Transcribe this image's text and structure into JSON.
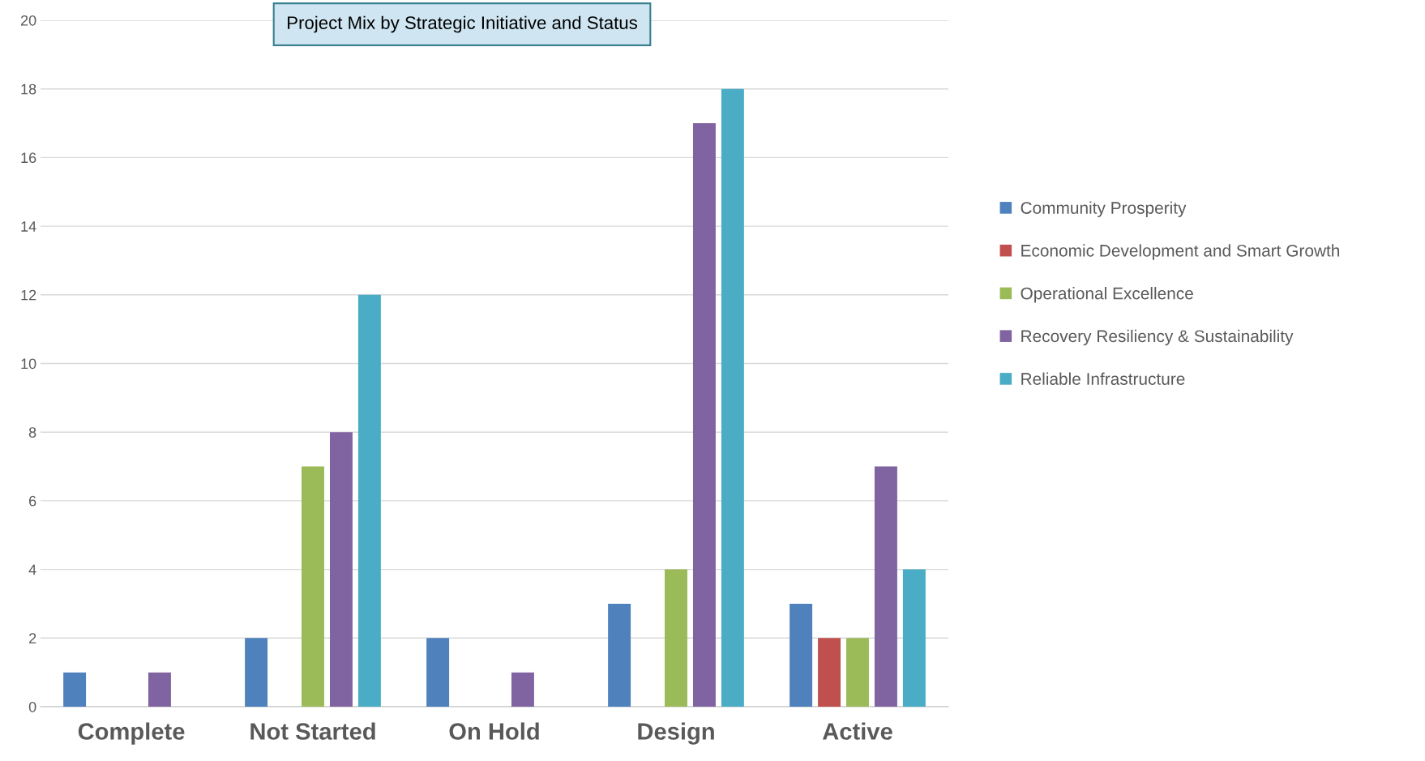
{
  "chart_data": {
    "type": "bar",
    "title": "Project Mix by Strategic Initiative and Status",
    "categories": [
      "Complete",
      "Not Started",
      "On Hold",
      "Design",
      "Active"
    ],
    "series": [
      {
        "name": "Community Prosperity",
        "color": "#4f81bd",
        "values": [
          1,
          2,
          2,
          3,
          3
        ]
      },
      {
        "name": "Economic Development and Smart Growth",
        "color": "#c0504d",
        "values": [
          0,
          0,
          0,
          0,
          2
        ]
      },
      {
        "name": "Operational Excellence",
        "color": "#9bbb59",
        "values": [
          0,
          7,
          0,
          4,
          2
        ]
      },
      {
        "name": "Recovery Resiliency & Sustainability",
        "color": "#8064a2",
        "values": [
          1,
          8,
          1,
          17,
          7
        ]
      },
      {
        "name": "Reliable Infrastructure",
        "color": "#4bacc6",
        "values": [
          0,
          12,
          0,
          18,
          4
        ]
      }
    ],
    "ylim": [
      0,
      20
    ],
    "yticks": [
      0,
      2,
      4,
      6,
      8,
      10,
      12,
      14,
      16,
      18,
      20
    ],
    "grid": "y",
    "legend": "right"
  }
}
